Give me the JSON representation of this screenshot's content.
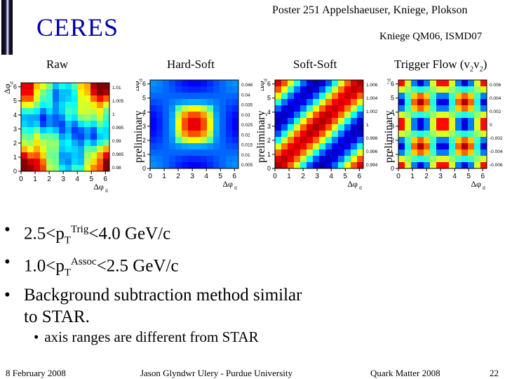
{
  "header": {
    "logo_text": "CERES",
    "poster_credit": "Poster 251 Appelshaeuser, Kniege, Plokson",
    "reference": "Kniege QM06, ISMD07"
  },
  "panels": [
    {
      "label": "Raw",
      "ylabel": "Δφ",
      "ylabel_sub": "tl",
      "xlabel": "Δφ",
      "xlabel_sub": "tl",
      "colorbar_ticks": [
        "1.01",
        "1.005",
        "1",
        "0.995",
        "0.99",
        "0.985",
        "0.98"
      ]
    },
    {
      "label": "Hard-Soft",
      "prelim": "preliminary",
      "ylabel": "Δφ",
      "ylabel_sub": "tl",
      "xlabel": "Δφ",
      "xlabel_sub": "tl",
      "colorbar_ticks": [
        "0.046",
        "0.04",
        "0.035",
        "0.03",
        "0.025",
        "0.02",
        "0.015",
        "0.01",
        "0.005"
      ]
    },
    {
      "label": "Soft-Soft",
      "prelim": "preliminary",
      "ylabel": "Δφ",
      "ylabel_sub": "tl",
      "xlabel": "Δφ",
      "xlabel_sub": "tl",
      "colorbar_ticks": [
        "1.006",
        "1.004",
        "1.002",
        "1",
        "0.998",
        "0.996",
        "0.994"
      ]
    },
    {
      "label": "Trigger Flow (v",
      "label_sub1": "2",
      "label_mid": "v",
      "label_sub2": "2",
      "label_end": ")",
      "prelim": "preliminary",
      "ylabel": "Δφ",
      "ylabel_sub": "tl",
      "xlabel": "Δφ",
      "xlabel_sub": "tl",
      "colorbar_ticks": [
        "0.006",
        "0.004",
        "0.002",
        "0",
        "-0.002",
        "-0.004",
        "-0.006"
      ]
    }
  ],
  "axis_ticks": [
    "0",
    "1",
    "2",
    "3",
    "4",
    "5",
    "6"
  ],
  "bullets": {
    "b1_a": "2.5<p",
    "b1_sub": "T",
    "b1_sup": "Trig",
    "b1_b": "<4.0 GeV/c",
    "b2_a": "1.0<p",
    "b2_sub": "T",
    "b2_sup": "Assoc",
    "b2_b": "<2.5 GeV/c",
    "b3_line1": "Background subtraction method similar",
    "b3_line2": "to STAR.",
    "sub": "axis ranges are different from STAR"
  },
  "footer": {
    "date": "8 February 2008",
    "author": "Jason Glyndwr Ulery - Purdue University",
    "conference": "Quark Matter 2008",
    "page": "22"
  }
}
